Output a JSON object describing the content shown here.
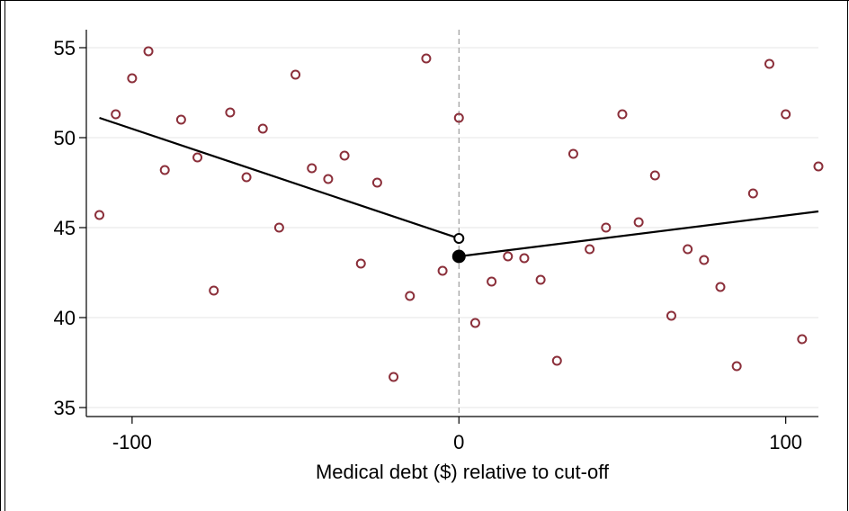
{
  "chart_data": {
    "type": "scatter",
    "title": "",
    "xlabel": "Medical debt ($) relative to cut-off",
    "ylabel": "",
    "xlim": [
      -114,
      110
    ],
    "ylim": [
      34.5,
      56
    ],
    "grid": true,
    "legend": "none",
    "cutoff": 0,
    "xticks": [
      -100,
      0,
      100
    ],
    "xtick_labels": [
      "-100",
      "0",
      "100"
    ],
    "yticks": [
      35,
      40,
      45,
      50,
      55
    ],
    "ytick_labels": [
      "35",
      "40",
      "45",
      "50",
      "55"
    ],
    "marker_color": "#8B2F3A",
    "line_color": "#000000",
    "series": [
      {
        "values": [
          {
            "x": -110,
            "y": 45.7
          },
          {
            "x": -105,
            "y": 51.3
          },
          {
            "x": -100,
            "y": 53.3
          },
          {
            "x": -95,
            "y": 54.8
          },
          {
            "x": -90,
            "y": 48.2
          },
          {
            "x": -85,
            "y": 51.0
          },
          {
            "x": -80,
            "y": 48.9
          },
          {
            "x": -75,
            "y": 41.5
          },
          {
            "x": -70,
            "y": 51.4
          },
          {
            "x": -65,
            "y": 47.8
          },
          {
            "x": -60,
            "y": 50.5
          },
          {
            "x": -55,
            "y": 45.0
          },
          {
            "x": -50,
            "y": 53.5
          },
          {
            "x": -45,
            "y": 48.3
          },
          {
            "x": -40,
            "y": 47.7
          },
          {
            "x": -35,
            "y": 49.0
          },
          {
            "x": -30,
            "y": 43.0
          },
          {
            "x": -25,
            "y": 47.5
          },
          {
            "x": -20,
            "y": 36.7
          },
          {
            "x": -15,
            "y": 41.2
          },
          {
            "x": -10,
            "y": 54.4
          },
          {
            "x": -5,
            "y": 42.6
          },
          {
            "x": 0,
            "y": 51.1
          },
          {
            "x": 5,
            "y": 39.7
          },
          {
            "x": 10,
            "y": 42.0
          },
          {
            "x": 15,
            "y": 43.4
          },
          {
            "x": 20,
            "y": 43.3
          },
          {
            "x": 25,
            "y": 42.1
          },
          {
            "x": 30,
            "y": 37.6
          },
          {
            "x": 35,
            "y": 49.1
          },
          {
            "x": 40,
            "y": 43.8
          },
          {
            "x": 45,
            "y": 45.0
          },
          {
            "x": 50,
            "y": 51.3
          },
          {
            "x": 55,
            "y": 45.3
          },
          {
            "x": 60,
            "y": 47.9
          },
          {
            "x": 65,
            "y": 40.1
          },
          {
            "x": 70,
            "y": 43.8
          },
          {
            "x": 75,
            "y": 43.2
          },
          {
            "x": 80,
            "y": 41.7
          },
          {
            "x": 85,
            "y": 37.3
          },
          {
            "x": 90,
            "y": 46.9
          },
          {
            "x": 95,
            "y": 54.1
          },
          {
            "x": 100,
            "y": 51.3
          },
          {
            "x": 105,
            "y": 38.8
          },
          {
            "x": 110,
            "y": 48.4
          }
        ]
      }
    ],
    "fit_lines": [
      {
        "side": "left",
        "points": [
          {
            "x": -110,
            "y": 51.1
          },
          {
            "x": 0,
            "y": 44.4
          }
        ]
      },
      {
        "side": "right",
        "points": [
          {
            "x": 0,
            "y": 43.4
          },
          {
            "x": 110,
            "y": 45.9
          }
        ]
      }
    ],
    "cutoff_markers": [
      {
        "x": 0,
        "y": 44.4,
        "style": "hollow"
      },
      {
        "x": 0,
        "y": 43.4,
        "style": "filled"
      }
    ]
  }
}
